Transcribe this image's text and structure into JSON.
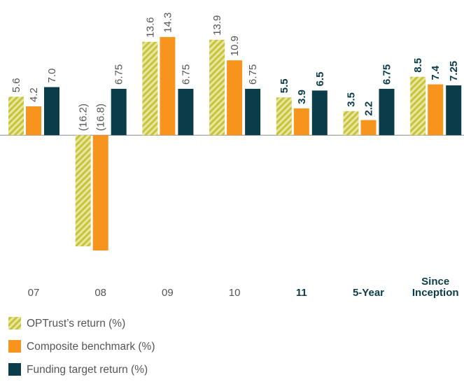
{
  "chart_data": {
    "type": "bar",
    "categories": [
      "07",
      "08",
      "09",
      "10",
      "11",
      "5-Year",
      "Since Inception"
    ],
    "emphasized": [
      false,
      false,
      false,
      false,
      true,
      true,
      true
    ],
    "series": [
      {
        "name": "OPTrust’s return (%)",
        "color": "#c8c43a",
        "pattern": "hatch",
        "values": [
          5.6,
          -16.2,
          13.6,
          13.9,
          5.5,
          3.5,
          8.5
        ],
        "value_labels": [
          "5.6",
          "(16.2)",
          "13.6",
          "13.9",
          "5.5",
          "3.5",
          "8.5"
        ]
      },
      {
        "name": "Composite benchmark (%)",
        "color": "#f7941d",
        "values": [
          4.2,
          -16.8,
          14.3,
          10.9,
          3.9,
          2.2,
          7.4
        ],
        "value_labels": [
          "4.2",
          "(16.8)",
          "14.3",
          "10.9",
          "3.9",
          "2.2",
          "7.4"
        ]
      },
      {
        "name": "Funding target return (%)",
        "color": "#0b3c49",
        "values": [
          7.0,
          6.75,
          6.75,
          6.75,
          6.5,
          6.75,
          7.25
        ],
        "value_labels": [
          "7.0",
          "6.75",
          "6.75",
          "6.75",
          "6.5",
          "6.75",
          "7.25"
        ]
      }
    ],
    "ylim": [
      -17,
      15
    ]
  }
}
